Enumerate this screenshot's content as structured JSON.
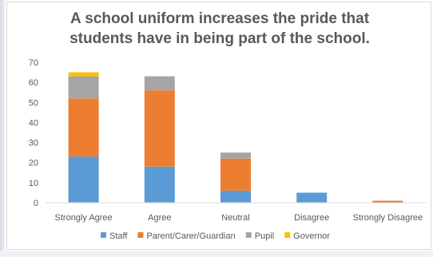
{
  "chart_data": {
    "type": "bar",
    "stacked": true,
    "title": "A school uniform increases the pride that students have in being part of the school.",
    "title_lines": [
      "A school uniform increases the pride that",
      "students have in being part of the school."
    ],
    "xlabel": "",
    "ylabel": "",
    "ylim": [
      0,
      70
    ],
    "y_ticks": [
      0,
      10,
      20,
      30,
      40,
      50,
      60,
      70
    ],
    "grid": false,
    "legend_position": "bottom",
    "categories": [
      "Strongly Agree",
      "Agree",
      "Neutral",
      "Disagree",
      "Strongly Disagree"
    ],
    "series": [
      {
        "name": "Staff",
        "color": "#5b9bd5",
        "values": [
          23,
          18,
          6,
          5,
          0
        ]
      },
      {
        "name": "Parent/Carer/Guardian",
        "color": "#ed7d31",
        "values": [
          29,
          38,
          16,
          0,
          1
        ]
      },
      {
        "name": "Pupil",
        "color": "#a5a5a5",
        "values": [
          11,
          7,
          3,
          0,
          0
        ]
      },
      {
        "name": "Governor",
        "color": "#ffc000",
        "values": [
          2,
          0,
          0,
          0,
          0
        ]
      }
    ]
  }
}
